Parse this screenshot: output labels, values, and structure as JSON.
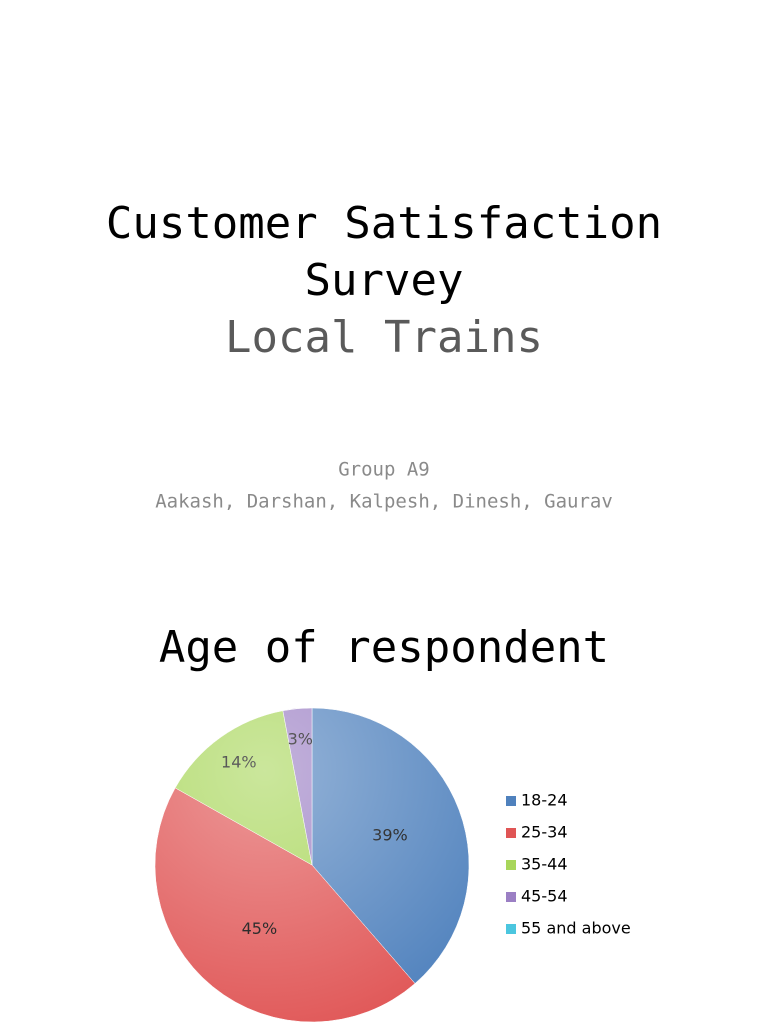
{
  "slide": {
    "title_lines": [
      "Customer Satisfaction",
      "Survey"
    ],
    "subtitle": "Local Trains",
    "group": "Group A9",
    "members": "Aakash, Darshan, Kalpesh, Dinesh, Gaurav"
  },
  "chart_data": {
    "type": "pie",
    "title": "Age of respondent",
    "categories": [
      "18-24",
      "25-34",
      "35-44",
      "45-54",
      "55 and above"
    ],
    "values": [
      39,
      45,
      14,
      3,
      0
    ],
    "value_labels": [
      "39%",
      "45%",
      "14%",
      "3%",
      null
    ],
    "colors": [
      "#4f81bd",
      "#e05555",
      "#a8d65a",
      "#9b7fc4",
      "#4bc6df"
    ],
    "legend": "right"
  }
}
